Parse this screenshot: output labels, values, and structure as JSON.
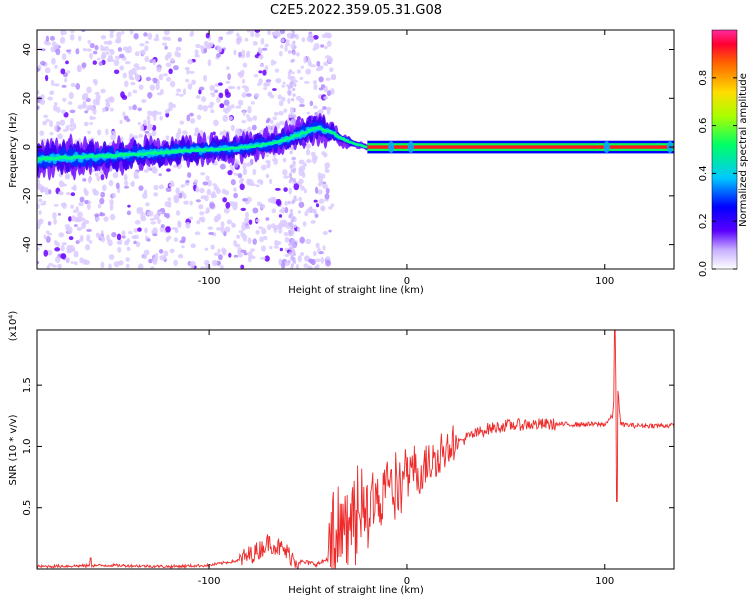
{
  "title": "C2E5.2022.359.05.31.G08",
  "colors": {
    "snr_line": "#ee2a2a",
    "carrier_band": "#ff1a1a",
    "background": "#ffffff"
  },
  "chart_data": [
    {
      "type": "heatmap",
      "name": "spectrogram",
      "xlabel": "Height of straight line (km)",
      "ylabel": "Frequency (Hz)",
      "xlim": [
        -187,
        135
      ],
      "ylim": [
        -50,
        48
      ],
      "xticks": [
        "-100",
        "0",
        "100"
      ],
      "xtick_values": [
        -100,
        0,
        100
      ],
      "yticks": [
        "-40",
        "-20",
        "0",
        "20",
        "40"
      ],
      "ytick_values": [
        -40,
        -20,
        0,
        20,
        40
      ],
      "colorbar": {
        "label": "Normalized spectral amplitude",
        "ticks": [
          "0.0",
          "0.2",
          "0.4",
          "0.6",
          "0.8"
        ],
        "tick_values": [
          0.0,
          0.2,
          0.4,
          0.6,
          0.8
        ],
        "range": [
          0,
          1
        ]
      },
      "ridge": {
        "x": [
          -187,
          -160,
          -140,
          -120,
          -100,
          -80,
          -65,
          -55,
          -45,
          -38,
          -32,
          -25,
          -20,
          -10,
          0,
          20,
          60,
          100,
          135
        ],
        "center_hz": [
          -5,
          -4,
          -3,
          -2,
          -1,
          0,
          2,
          5,
          8,
          6,
          3,
          1,
          0,
          0,
          0,
          0,
          0,
          0,
          0
        ],
        "width_hz": [
          13,
          12,
          11,
          10,
          10,
          9,
          9,
          10,
          11,
          8,
          5,
          3,
          2,
          1.6,
          1.6,
          1.6,
          1.6,
          1.6,
          1.6
        ]
      }
    },
    {
      "type": "line",
      "name": "snr",
      "xlabel": "Height of straight line (km)",
      "ylabel": "SNR (10 * v/v)",
      "multiplier_label": "(x10⁴)",
      "xlim": [
        -187,
        135
      ],
      "ylim": [
        0,
        1.95
      ],
      "xticks": [
        "-100",
        "0",
        "100"
      ],
      "xtick_values": [
        -100,
        0,
        100
      ],
      "yticks": [
        "0.5",
        "1.0",
        "1.5"
      ],
      "ytick_values": [
        0.5,
        1.0,
        1.5
      ],
      "envelope": {
        "x": [
          -187,
          -150,
          -120,
          -100,
          -85,
          -75,
          -70,
          -62,
          -55,
          -45,
          -38,
          -32,
          -25,
          -18,
          -10,
          0,
          10,
          20,
          30,
          40,
          50,
          60,
          70,
          80,
          90,
          100,
          104,
          106,
          108,
          115,
          125,
          135
        ],
        "y": [
          0.02,
          0.03,
          0.02,
          0.03,
          0.07,
          0.15,
          0.22,
          0.15,
          0.06,
          0.04,
          0.1,
          0.25,
          0.38,
          0.48,
          0.58,
          0.7,
          0.85,
          0.97,
          1.07,
          1.14,
          1.17,
          1.18,
          1.18,
          1.18,
          1.18,
          1.18,
          1.25,
          1.6,
          1.18,
          1.17,
          1.17,
          1.17
        ]
      },
      "spikes": [
        {
          "x": -160,
          "y": 0.09
        },
        {
          "x": 105,
          "y": 1.95
        },
        {
          "x": 106,
          "y": 0.55
        }
      ]
    }
  ]
}
